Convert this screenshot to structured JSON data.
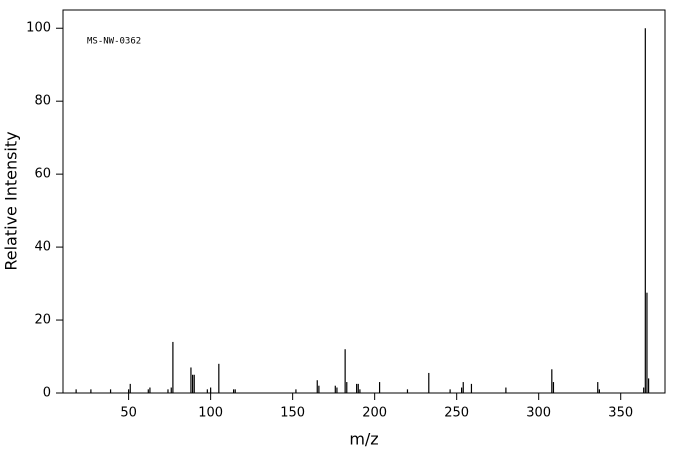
{
  "chart_data": {
    "type": "spectrum",
    "annotation": "MS-NW-0362",
    "x_label": "m/z",
    "y_label": "Relative Intensity",
    "color": "#000000",
    "xlim": [
      10,
      377
    ],
    "ylim": [
      0,
      105
    ],
    "xticks": [
      50,
      100,
      150,
      200,
      250,
      300,
      350
    ],
    "yticks": [
      0,
      20,
      40,
      60,
      80,
      100
    ],
    "x": [
      18,
      27,
      39,
      50,
      51,
      62,
      63,
      74,
      76,
      77,
      88,
      89,
      90,
      98,
      100,
      105,
      114,
      115,
      152,
      165,
      166,
      176,
      177,
      182,
      183,
      189,
      190,
      191,
      203,
      220,
      233,
      246,
      253,
      254,
      259,
      280,
      308,
      309,
      336,
      337,
      364,
      365,
      366,
      367
    ],
    "values": [
      1,
      1,
      1,
      1,
      2.5,
      1,
      1.5,
      1,
      1.5,
      14,
      7,
      5,
      5,
      1,
      1.5,
      8,
      1,
      1,
      1,
      3.5,
      2,
      2,
      1.5,
      12,
      3,
      2.5,
      2.5,
      1,
      3,
      1,
      5.5,
      1,
      1.5,
      3,
      2.5,
      1.5,
      6.5,
      3,
      3,
      1,
      1.5,
      100,
      27.5,
      4
    ]
  }
}
